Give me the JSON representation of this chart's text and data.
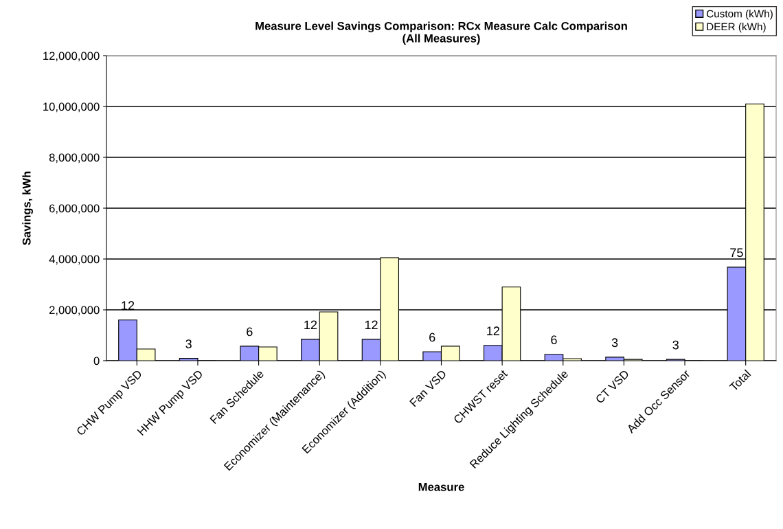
{
  "chart_data": {
    "type": "bar",
    "title": "Measure Level Savings Comparison: RCx Measure Calc Comparison\n(All Measures)",
    "xlabel": "Measure",
    "ylabel": "Savings, kWh",
    "categories": [
      "CHW Pump VSD",
      "HHW Pump VSD",
      "Fan Schedule",
      "Economizer (Maintenance)",
      "Economizer (Addition)",
      "Fan VSD",
      "CHWST reset",
      "Reduce Lighting Schedule",
      "CT VSD",
      "Add Occ Sensor",
      "Total"
    ],
    "series": [
      {
        "name": "Custom (kWh)",
        "color": "#9999ff",
        "values": [
          1600000,
          90000,
          570000,
          840000,
          840000,
          350000,
          600000,
          250000,
          140000,
          50000,
          3680000
        ]
      },
      {
        "name": "DEER (kWh)",
        "color": "#ffffcc",
        "values": [
          460000,
          0,
          540000,
          1920000,
          4050000,
          570000,
          2900000,
          80000,
          50000,
          0,
          10100000
        ]
      }
    ],
    "ylim": [
      0,
      12000000
    ],
    "yticks": [
      {
        "value": 0,
        "label": "0"
      },
      {
        "value": 2000000,
        "label": "2,000,000"
      },
      {
        "value": 4000000,
        "label": "4,000,000"
      },
      {
        "value": 6000000,
        "label": "6,000,000"
      },
      {
        "value": 8000000,
        "label": "8,000,000"
      },
      {
        "value": 10000000,
        "label": "10,000,000"
      },
      {
        "value": 12000000,
        "label": "12,000,000"
      }
    ],
    "grid": "y",
    "legend": "top right",
    "annotations": [
      {
        "text": "12",
        "x": "CHW Pump VSD",
        "y": 1600000
      },
      {
        "text": "3",
        "x": "HHW Pump VSD",
        "y": 90000
      },
      {
        "text": "6",
        "x": "Fan Schedule",
        "y": 570000
      },
      {
        "text": "12",
        "x": "Economizer (Maintenance)",
        "y": 840000
      },
      {
        "text": "12",
        "x": "Economizer (Addition)",
        "y": 840000
      },
      {
        "text": "6",
        "x": "Fan VSD",
        "y": 350000
      },
      {
        "text": "12",
        "x": "CHWST reset",
        "y": 600000
      },
      {
        "text": "6",
        "x": "Reduce Lighting Schedule",
        "y": 250000
      },
      {
        "text": "3",
        "x": "CT VSD",
        "y": 140000
      },
      {
        "text": "3",
        "x": "Add Occ Sensor",
        "y": 50000
      },
      {
        "text": "75",
        "x": "Total",
        "y": 3680000
      }
    ]
  }
}
